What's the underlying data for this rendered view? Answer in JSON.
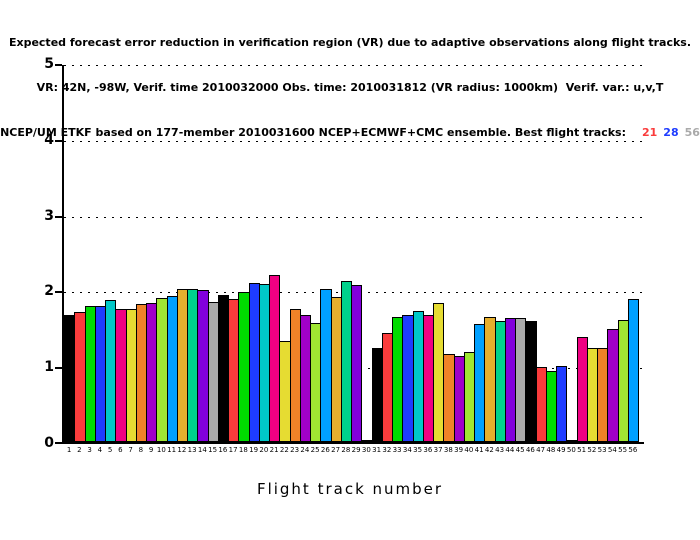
{
  "title": {
    "line1": "Expected forecast error reduction in verification region (VR) due to adaptive observations along flight tracks.",
    "line2": "VR: 42N, -98W, Verif. time 2010032000 Obs. time: 2010031812 (VR radius: 1000km)  Verif. var.: u,v,T",
    "line3_prefix": "NCEP/UM ETKF based on 177-member 2010031600 NCEP+ECMWF+CMC ensemble. Best flight tracks:",
    "best_tracks": [
      {
        "label": "21",
        "color": "#fa3c3c"
      },
      {
        "label": "28",
        "color": "#1e3cff"
      },
      {
        "label": "56",
        "color": "#aaaaaa"
      }
    ]
  },
  "chart_data": {
    "type": "bar",
    "title": "Expected forecast error reduction in verification region (VR) due to adaptive observations along flight tracks.",
    "subtitle1": "VR: 42N, -98W, Verif. time 2010032000 Obs. time: 2010031812 (VR radius: 1000km)  Verif. var.: u,v,T",
    "subtitle2": "NCEP/UM ETKF based on 177-member 2010031600 NCEP+ECMWF+CMC ensemble. Best flight tracks: 21 28 56",
    "xlabel": "Flight track number",
    "ylabel": "",
    "ylim": [
      0,
      5
    ],
    "yticks": [
      0,
      1,
      2,
      3,
      4,
      5
    ],
    "grid": "horizontal dotted at y=1,2,3,4,5",
    "legend": "none",
    "bar_outline_color": "#000000",
    "palette_cycle": [
      "#000000",
      "#fa3c3c",
      "#00dc00",
      "#1e3cff",
      "#00c8c8",
      "#f00082",
      "#e6dc32",
      "#f08228",
      "#a000c8",
      "#a0e632",
      "#00a0ff",
      "#e6af2d",
      "#00d28c",
      "#8200dc",
      "#aaaaaa"
    ],
    "categories": [
      1,
      2,
      3,
      4,
      5,
      6,
      7,
      8,
      9,
      10,
      11,
      12,
      13,
      14,
      15,
      16,
      17,
      18,
      19,
      20,
      21,
      22,
      23,
      24,
      25,
      26,
      27,
      28,
      29,
      30,
      31,
      32,
      33,
      34,
      35,
      36,
      37,
      38,
      39,
      40,
      41,
      42,
      43,
      44,
      45,
      46,
      47,
      48,
      49,
      50,
      51,
      52,
      53,
      54,
      55,
      56
    ],
    "values": [
      1.68,
      1.73,
      1.8,
      1.81,
      1.88,
      1.76,
      1.76,
      1.83,
      1.85,
      1.91,
      1.93,
      2.03,
      2.03,
      2.01,
      1.86,
      1.95,
      1.9,
      1.99,
      2.11,
      2.09,
      2.21,
      1.34,
      1.76,
      1.69,
      1.58,
      2.03,
      1.92,
      2.14,
      2.08,
      0.02,
      1.25,
      1.44,
      1.66,
      1.69,
      1.74,
      1.69,
      1.84,
      1.17,
      1.14,
      1.2,
      1.56,
      1.66,
      1.6,
      1.64,
      1.65,
      1.6,
      1.0,
      0.94,
      1.01,
      0.02,
      1.39,
      1.25,
      1.25,
      1.5,
      1.62,
      1.9
    ],
    "notes": "bar color = palette_cycle[(track-1) mod 15]; tracks 30 and 50 are near-zero stubs"
  }
}
